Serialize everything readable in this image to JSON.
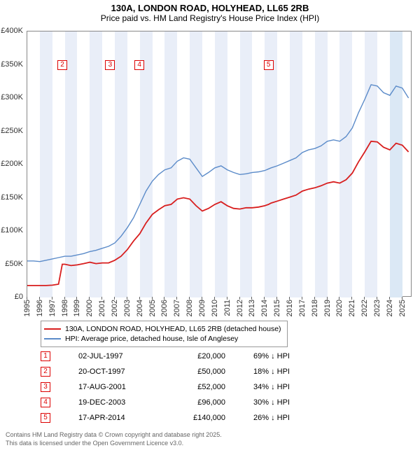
{
  "title_main": "130A, LONDON ROAD, HOLYHEAD, LL65 2RB",
  "title_sub": "Price paid vs. HM Land Registry's House Price Index (HPI)",
  "chart": {
    "type": "line",
    "background_color": "#ffffff",
    "border_color": "#888888",
    "x_min": 1995,
    "x_max": 2025.8,
    "x_tick_step": 1,
    "x_ticks": [
      1995,
      1996,
      1997,
      1998,
      1999,
      2000,
      2001,
      2002,
      2003,
      2004,
      2005,
      2006,
      2007,
      2008,
      2009,
      2010,
      2011,
      2012,
      2013,
      2014,
      2015,
      2016,
      2017,
      2018,
      2019,
      2020,
      2021,
      2022,
      2023,
      2024,
      2025
    ],
    "y_min": 0,
    "y_max": 400000,
    "y_tick_step": 50000,
    "y_ticks": [
      0,
      50000,
      100000,
      150000,
      200000,
      250000,
      300000,
      350000,
      400000
    ],
    "y_tick_labels": [
      "£0",
      "£50K",
      "£100K",
      "£150K",
      "£200K",
      "£250K",
      "£300K",
      "£350K",
      "£400K"
    ],
    "y_prefix": "£",
    "y_suffix": "K",
    "alt_bands_color": "#e9eef8",
    "alt_recent_band_color": "#dbe8f5",
    "label_fontsize": 11,
    "series": [
      {
        "name": "hpi",
        "label": "HPI: Average price, detached house, Isle of Anglesey",
        "color": "#5b8bc9",
        "line_width": 1.4,
        "points": [
          [
            1995.0,
            55000
          ],
          [
            1995.5,
            55000
          ],
          [
            1996.0,
            54000
          ],
          [
            1996.5,
            56000
          ],
          [
            1997.0,
            58000
          ],
          [
            1997.5,
            60000
          ],
          [
            1998.0,
            62000
          ],
          [
            1998.5,
            62000
          ],
          [
            1999.0,
            64000
          ],
          [
            1999.5,
            66000
          ],
          [
            2000.0,
            69000
          ],
          [
            2000.5,
            71000
          ],
          [
            2001.0,
            74000
          ],
          [
            2001.5,
            77000
          ],
          [
            2002.0,
            82000
          ],
          [
            2002.5,
            92000
          ],
          [
            2003.0,
            105000
          ],
          [
            2003.5,
            120000
          ],
          [
            2004.0,
            140000
          ],
          [
            2004.5,
            160000
          ],
          [
            2005.0,
            175000
          ],
          [
            2005.5,
            185000
          ],
          [
            2006.0,
            192000
          ],
          [
            2006.5,
            195000
          ],
          [
            2007.0,
            205000
          ],
          [
            2007.5,
            210000
          ],
          [
            2008.0,
            208000
          ],
          [
            2008.5,
            195000
          ],
          [
            2009.0,
            182000
          ],
          [
            2009.5,
            188000
          ],
          [
            2010.0,
            195000
          ],
          [
            2010.5,
            198000
          ],
          [
            2011.0,
            192000
          ],
          [
            2011.5,
            188000
          ],
          [
            2012.0,
            185000
          ],
          [
            2012.5,
            186000
          ],
          [
            2013.0,
            188000
          ],
          [
            2013.5,
            189000
          ],
          [
            2014.0,
            191000
          ],
          [
            2014.5,
            195000
          ],
          [
            2015.0,
            198000
          ],
          [
            2015.5,
            202000
          ],
          [
            2016.0,
            206000
          ],
          [
            2016.5,
            210000
          ],
          [
            2017.0,
            218000
          ],
          [
            2017.5,
            222000
          ],
          [
            2018.0,
            224000
          ],
          [
            2018.5,
            228000
          ],
          [
            2019.0,
            235000
          ],
          [
            2019.5,
            237000
          ],
          [
            2020.0,
            235000
          ],
          [
            2020.5,
            242000
          ],
          [
            2021.0,
            255000
          ],
          [
            2021.5,
            278000
          ],
          [
            2022.0,
            298000
          ],
          [
            2022.5,
            320000
          ],
          [
            2023.0,
            318000
          ],
          [
            2023.5,
            308000
          ],
          [
            2024.0,
            304000
          ],
          [
            2024.5,
            318000
          ],
          [
            2025.0,
            315000
          ],
          [
            2025.5,
            300000
          ]
        ]
      },
      {
        "name": "price_paid",
        "label": "130A, LONDON ROAD, HOLYHEAD, LL65 2RB (detached house)",
        "color": "#d81e1e",
        "line_width": 1.8,
        "points": [
          [
            1995.0,
            18000
          ],
          [
            1995.5,
            18000
          ],
          [
            1996.0,
            18000
          ],
          [
            1996.5,
            18000
          ],
          [
            1997.0,
            18500
          ],
          [
            1997.5,
            20000
          ],
          [
            1997.8,
            50000
          ],
          [
            1998.0,
            50000
          ],
          [
            1998.5,
            48000
          ],
          [
            1999.0,
            49000
          ],
          [
            1999.5,
            51000
          ],
          [
            2000.0,
            53000
          ],
          [
            2000.5,
            51000
          ],
          [
            2001.0,
            52000
          ],
          [
            2001.5,
            52000
          ],
          [
            2002.0,
            56000
          ],
          [
            2002.5,
            62000
          ],
          [
            2003.0,
            72000
          ],
          [
            2003.5,
            85000
          ],
          [
            2004.0,
            96000
          ],
          [
            2004.5,
            112000
          ],
          [
            2005.0,
            125000
          ],
          [
            2005.5,
            132000
          ],
          [
            2006.0,
            138000
          ],
          [
            2006.5,
            140000
          ],
          [
            2007.0,
            148000
          ],
          [
            2007.5,
            150000
          ],
          [
            2008.0,
            148000
          ],
          [
            2008.5,
            138000
          ],
          [
            2009.0,
            130000
          ],
          [
            2009.5,
            134000
          ],
          [
            2010.0,
            140000
          ],
          [
            2010.5,
            144000
          ],
          [
            2011.0,
            138000
          ],
          [
            2011.5,
            134000
          ],
          [
            2012.0,
            133000
          ],
          [
            2012.5,
            135000
          ],
          [
            2013.0,
            135000
          ],
          [
            2013.5,
            136000
          ],
          [
            2014.0,
            138000
          ],
          [
            2014.3,
            140000
          ],
          [
            2014.5,
            142000
          ],
          [
            2015.0,
            145000
          ],
          [
            2015.5,
            148000
          ],
          [
            2016.0,
            151000
          ],
          [
            2016.5,
            154000
          ],
          [
            2017.0,
            160000
          ],
          [
            2017.5,
            163000
          ],
          [
            2018.0,
            165000
          ],
          [
            2018.5,
            168000
          ],
          [
            2019.0,
            172000
          ],
          [
            2019.5,
            174000
          ],
          [
            2020.0,
            172000
          ],
          [
            2020.5,
            177000
          ],
          [
            2021.0,
            187000
          ],
          [
            2021.5,
            204000
          ],
          [
            2022.0,
            219000
          ],
          [
            2022.5,
            235000
          ],
          [
            2023.0,
            234000
          ],
          [
            2023.5,
            226000
          ],
          [
            2024.0,
            222000
          ],
          [
            2024.5,
            232000
          ],
          [
            2025.0,
            229000
          ],
          [
            2025.5,
            219000
          ]
        ]
      }
    ],
    "sale_markers": [
      {
        "n": 1,
        "x": 1997.5,
        "y_label": 350000
      },
      {
        "n": 2,
        "x": 1997.8,
        "y_label": 350000
      },
      {
        "n": 3,
        "x": 2001.63,
        "y_label": 350000
      },
      {
        "n": 4,
        "x": 2003.97,
        "y_label": 350000
      },
      {
        "n": 5,
        "x": 2014.3,
        "y_label": 350000
      }
    ]
  },
  "legend": {
    "items": [
      {
        "color": "#d81e1e",
        "label": "130A, LONDON ROAD, HOLYHEAD, LL65 2RB (detached house)",
        "line_width": 2
      },
      {
        "color": "#5b8bc9",
        "label": "HPI: Average price, detached house, Isle of Anglesey",
        "line_width": 1.4
      }
    ]
  },
  "sales": [
    {
      "n": 1,
      "date": "02-JUL-1997",
      "price": "£20,000",
      "diff": "69% ↓ HPI"
    },
    {
      "n": 2,
      "date": "20-OCT-1997",
      "price": "£50,000",
      "diff": "18% ↓ HPI"
    },
    {
      "n": 3,
      "date": "17-AUG-2001",
      "price": "£52,000",
      "diff": "34% ↓ HPI"
    },
    {
      "n": 4,
      "date": "19-DEC-2003",
      "price": "£96,000",
      "diff": "30% ↓ HPI"
    },
    {
      "n": 5,
      "date": "17-APR-2014",
      "price": "£140,000",
      "diff": "26% ↓ HPI"
    }
  ],
  "attribution": {
    "line1": "Contains HM Land Registry data © Crown copyright and database right 2025.",
    "line2": "This data is licensed under the Open Government Licence v3.0."
  }
}
